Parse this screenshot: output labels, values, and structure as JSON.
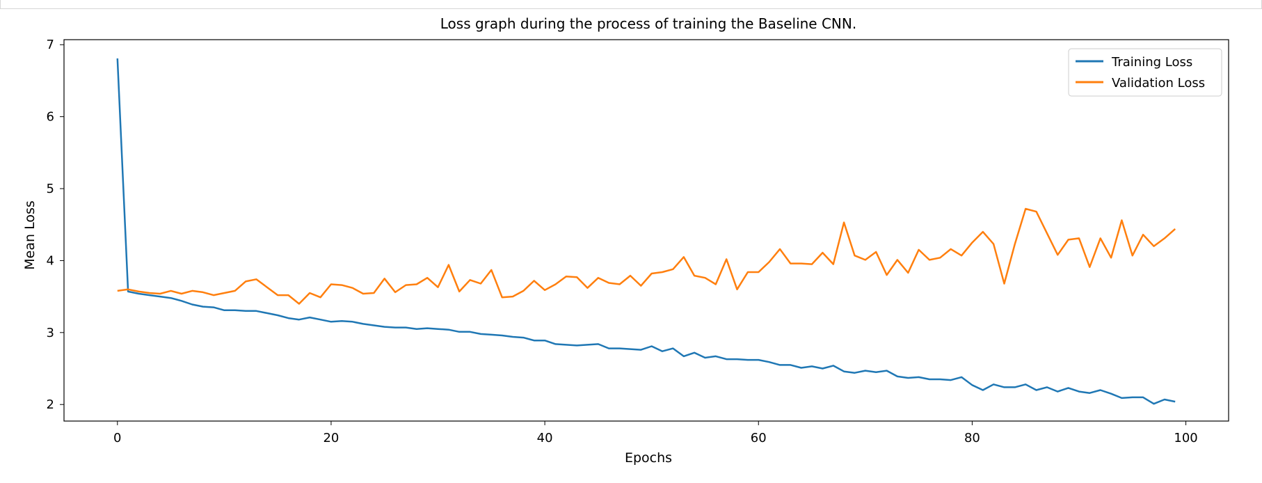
{
  "chart_data": {
    "type": "line",
    "title": "Loss graph during the process of training the Baseline CNN.",
    "xlabel": "Epochs",
    "ylabel": "Mean Loss",
    "xlim": [
      -5,
      104
    ],
    "ylim": [
      1.77,
      7.07
    ],
    "xticks": [
      0,
      20,
      40,
      60,
      80,
      100
    ],
    "yticks": [
      2,
      3,
      4,
      5,
      6,
      7
    ],
    "grid": false,
    "legend": "top-right",
    "x": [
      0,
      1,
      2,
      3,
      4,
      5,
      6,
      7,
      8,
      9,
      10,
      11,
      12,
      13,
      14,
      15,
      16,
      17,
      18,
      19,
      20,
      21,
      22,
      23,
      24,
      25,
      26,
      27,
      28,
      29,
      30,
      31,
      32,
      33,
      34,
      35,
      36,
      37,
      38,
      39,
      40,
      41,
      42,
      43,
      44,
      45,
      46,
      47,
      48,
      49,
      50,
      51,
      52,
      53,
      54,
      55,
      56,
      57,
      58,
      59,
      60,
      61,
      62,
      63,
      64,
      65,
      66,
      67,
      68,
      69,
      70,
      71,
      72,
      73,
      74,
      75,
      76,
      77,
      78,
      79,
      80,
      81,
      82,
      83,
      84,
      85,
      86,
      87,
      88,
      89,
      90,
      91,
      92,
      93,
      94,
      95,
      96,
      97,
      98,
      99
    ],
    "series": [
      {
        "name": "Training Loss",
        "color": "#1f77b4",
        "values": [
          6.81,
          3.57,
          3.54,
          3.52,
          3.5,
          3.48,
          3.44,
          3.39,
          3.36,
          3.35,
          3.31,
          3.31,
          3.3,
          3.3,
          3.27,
          3.24,
          3.2,
          3.18,
          3.21,
          3.18,
          3.15,
          3.16,
          3.15,
          3.12,
          3.1,
          3.08,
          3.07,
          3.07,
          3.05,
          3.06,
          3.05,
          3.04,
          3.01,
          3.01,
          2.98,
          2.97,
          2.96,
          2.94,
          2.93,
          2.89,
          2.89,
          2.84,
          2.83,
          2.82,
          2.83,
          2.84,
          2.78,
          2.78,
          2.77,
          2.76,
          2.81,
          2.74,
          2.78,
          2.67,
          2.72,
          2.65,
          2.67,
          2.63,
          2.63,
          2.62,
          2.62,
          2.59,
          2.55,
          2.55,
          2.51,
          2.53,
          2.5,
          2.54,
          2.46,
          2.44,
          2.47,
          2.45,
          2.47,
          2.39,
          2.37,
          2.38,
          2.35,
          2.35,
          2.34,
          2.38,
          2.27,
          2.2,
          2.28,
          2.24,
          2.24,
          2.28,
          2.2,
          2.24,
          2.18,
          2.23,
          2.18,
          2.16,
          2.2,
          2.15,
          2.09,
          2.1,
          2.1,
          2.01,
          2.07,
          2.04
        ]
      },
      {
        "name": "Validation Loss",
        "color": "#ff7f0e",
        "values": [
          3.58,
          3.6,
          3.57,
          3.55,
          3.54,
          3.58,
          3.54,
          3.58,
          3.56,
          3.52,
          3.55,
          3.58,
          3.71,
          3.74,
          3.63,
          3.52,
          3.52,
          3.4,
          3.55,
          3.49,
          3.67,
          3.66,
          3.62,
          3.54,
          3.55,
          3.75,
          3.56,
          3.66,
          3.67,
          3.76,
          3.63,
          3.94,
          3.57,
          3.73,
          3.68,
          3.87,
          3.49,
          3.5,
          3.58,
          3.72,
          3.59,
          3.67,
          3.78,
          3.77,
          3.62,
          3.76,
          3.69,
          3.67,
          3.79,
          3.65,
          3.82,
          3.84,
          3.88,
          4.05,
          3.79,
          3.76,
          3.67,
          4.02,
          3.6,
          3.84,
          3.84,
          3.98,
          4.16,
          3.96,
          3.96,
          3.95,
          4.11,
          3.95,
          4.53,
          4.07,
          4.01,
          4.12,
          3.8,
          4.01,
          3.83,
          4.15,
          4.01,
          4.04,
          4.16,
          4.07,
          4.25,
          4.4,
          4.23,
          3.68,
          4.23,
          4.72,
          4.68,
          4.38,
          4.08,
          4.29,
          4.31,
          3.91,
          4.31,
          4.04,
          4.56,
          4.07,
          4.36,
          4.2,
          4.31,
          4.44
        ]
      }
    ]
  }
}
